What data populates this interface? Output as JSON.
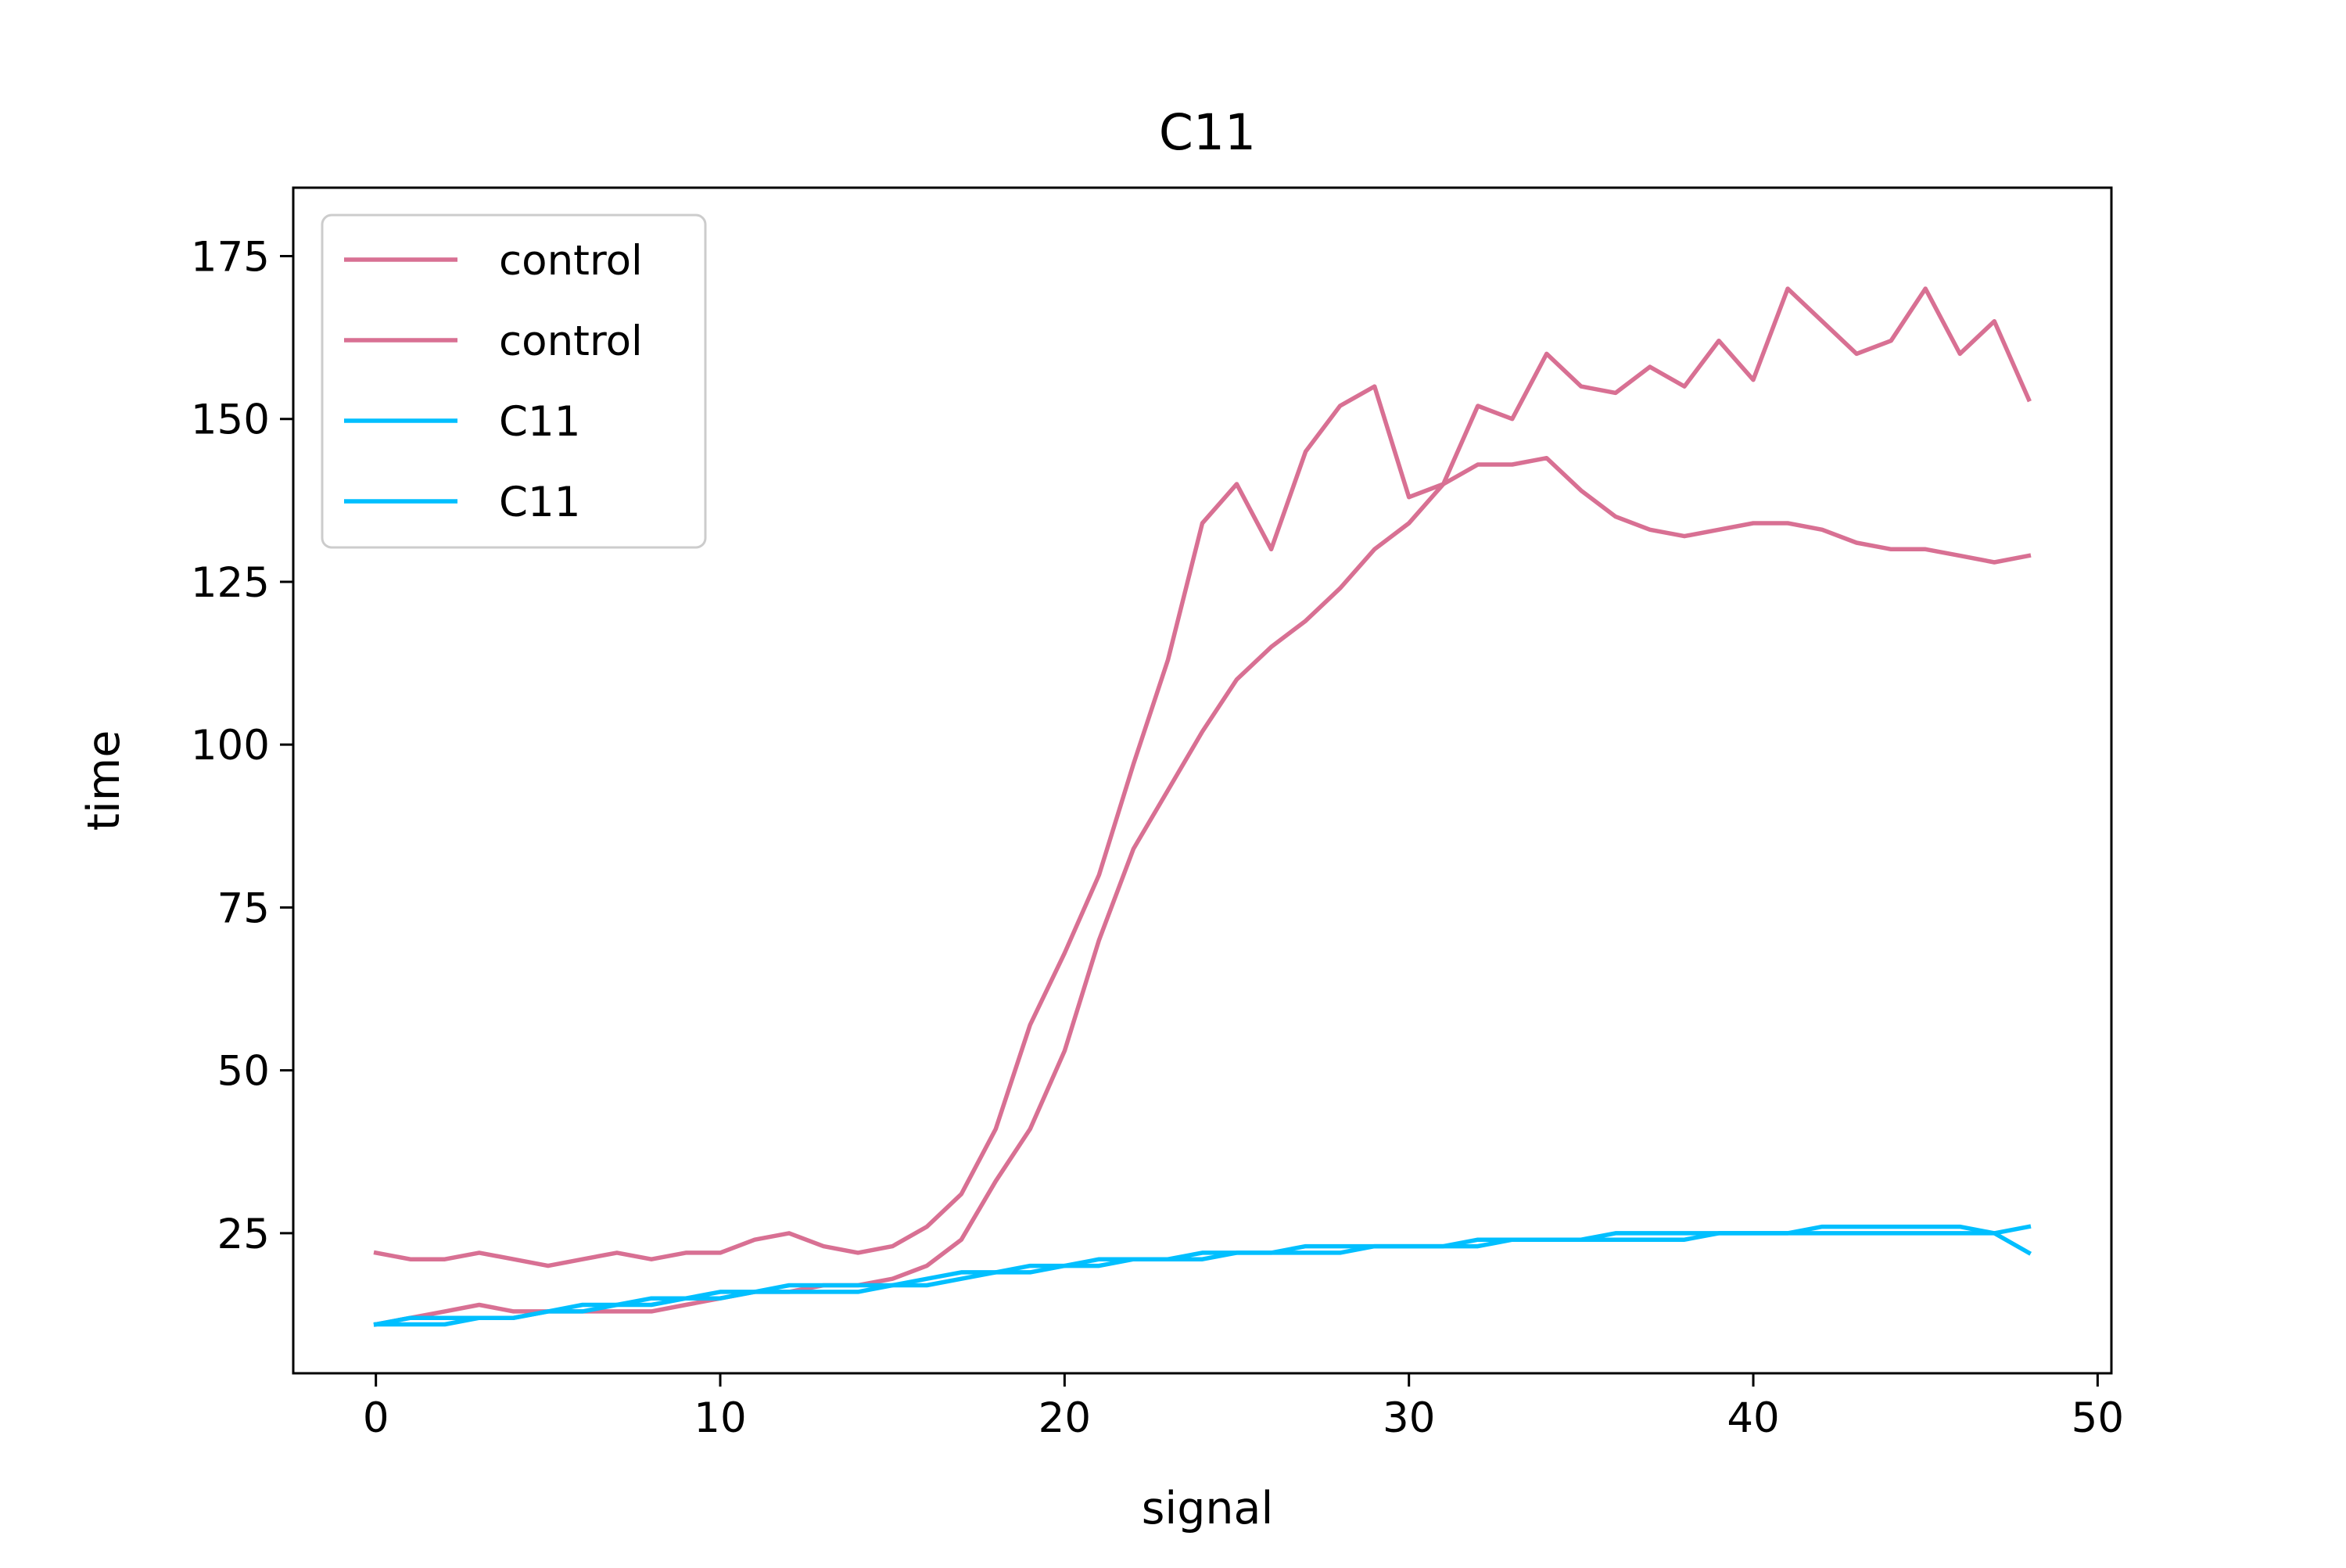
{
  "chart_data": {
    "type": "line",
    "title": "C11",
    "xlabel": "signal",
    "ylabel": "time",
    "xlim": [
      -2.4,
      50.4
    ],
    "ylim": [
      3.5,
      185.5
    ],
    "xticks": [
      0,
      10,
      20,
      30,
      40,
      50
    ],
    "yticks": [
      25,
      50,
      75,
      100,
      125,
      150,
      175
    ],
    "grid": false,
    "legend_position": "upper left",
    "series": [
      {
        "name": "control",
        "color": "#d87093",
        "x": [
          0,
          1,
          2,
          3,
          4,
          5,
          6,
          7,
          8,
          9,
          10,
          11,
          12,
          13,
          14,
          15,
          16,
          17,
          18,
          19,
          20,
          21,
          22,
          23,
          24,
          25,
          26,
          27,
          28,
          29,
          30,
          31,
          32,
          33,
          34,
          35,
          36,
          37,
          38,
          39,
          40,
          41,
          42,
          43,
          44,
          45,
          46,
          47,
          48
        ],
        "y": [
          22,
          21,
          21,
          22,
          21,
          20,
          21,
          22,
          21,
          22,
          22,
          24,
          25,
          23,
          22,
          23,
          26,
          31,
          41,
          57,
          68,
          80,
          97,
          113,
          134,
          140,
          130,
          145,
          152,
          155,
          138,
          140,
          152,
          150,
          160,
          155,
          154,
          158,
          155,
          162,
          156,
          170,
          165,
          160,
          162,
          170,
          160,
          165,
          153
        ]
      },
      {
        "name": "control",
        "color": "#d87093",
        "x": [
          0,
          1,
          2,
          3,
          4,
          5,
          6,
          7,
          8,
          9,
          10,
          11,
          12,
          13,
          14,
          15,
          16,
          17,
          18,
          19,
          20,
          21,
          22,
          23,
          24,
          25,
          26,
          27,
          28,
          29,
          30,
          31,
          32,
          33,
          34,
          35,
          36,
          37,
          38,
          39,
          40,
          41,
          42,
          43,
          44,
          45,
          46,
          47,
          48
        ],
        "y": [
          11,
          12,
          13,
          14,
          13,
          13,
          13,
          13,
          13,
          14,
          15,
          16,
          16,
          17,
          17,
          18,
          20,
          24,
          33,
          41,
          53,
          70,
          84,
          93,
          102,
          110,
          115,
          119,
          124,
          130,
          134,
          140,
          143,
          143,
          144,
          139,
          135,
          133,
          132,
          133,
          134,
          134,
          133,
          131,
          130,
          130,
          129,
          128,
          129
        ]
      },
      {
        "name": "C11",
        "color": "#00bfff",
        "x": [
          0,
          1,
          2,
          3,
          4,
          5,
          6,
          7,
          8,
          9,
          10,
          11,
          12,
          13,
          14,
          15,
          16,
          17,
          18,
          19,
          20,
          21,
          22,
          23,
          24,
          25,
          26,
          27,
          28,
          29,
          30,
          31,
          32,
          33,
          34,
          35,
          36,
          37,
          38,
          39,
          40,
          41,
          42,
          43,
          44,
          45,
          46,
          47,
          48
        ],
        "y": [
          11,
          12,
          12,
          12,
          12,
          13,
          13,
          14,
          14,
          15,
          15,
          16,
          16,
          16,
          16,
          17,
          17,
          18,
          19,
          19,
          20,
          20,
          21,
          21,
          21,
          22,
          22,
          22,
          22,
          23,
          23,
          23,
          23,
          24,
          24,
          24,
          24,
          24,
          24,
          25,
          25,
          25,
          25,
          25,
          25,
          25,
          25,
          25,
          26
        ]
      },
      {
        "name": "C11",
        "color": "#00bfff",
        "x": [
          0,
          1,
          2,
          3,
          4,
          5,
          6,
          7,
          8,
          9,
          10,
          11,
          12,
          13,
          14,
          15,
          16,
          17,
          18,
          19,
          20,
          21,
          22,
          23,
          24,
          25,
          26,
          27,
          28,
          29,
          30,
          31,
          32,
          33,
          34,
          35,
          36,
          37,
          38,
          39,
          40,
          41,
          42,
          43,
          44,
          45,
          46,
          47,
          48
        ],
        "y": [
          11,
          11,
          11,
          12,
          12,
          13,
          14,
          14,
          15,
          15,
          16,
          16,
          17,
          17,
          17,
          17,
          18,
          19,
          19,
          20,
          20,
          21,
          21,
          21,
          22,
          22,
          22,
          23,
          23,
          23,
          23,
          23,
          24,
          24,
          24,
          24,
          25,
          25,
          25,
          25,
          25,
          25,
          26,
          26,
          26,
          26,
          26,
          25,
          22
        ]
      }
    ]
  }
}
